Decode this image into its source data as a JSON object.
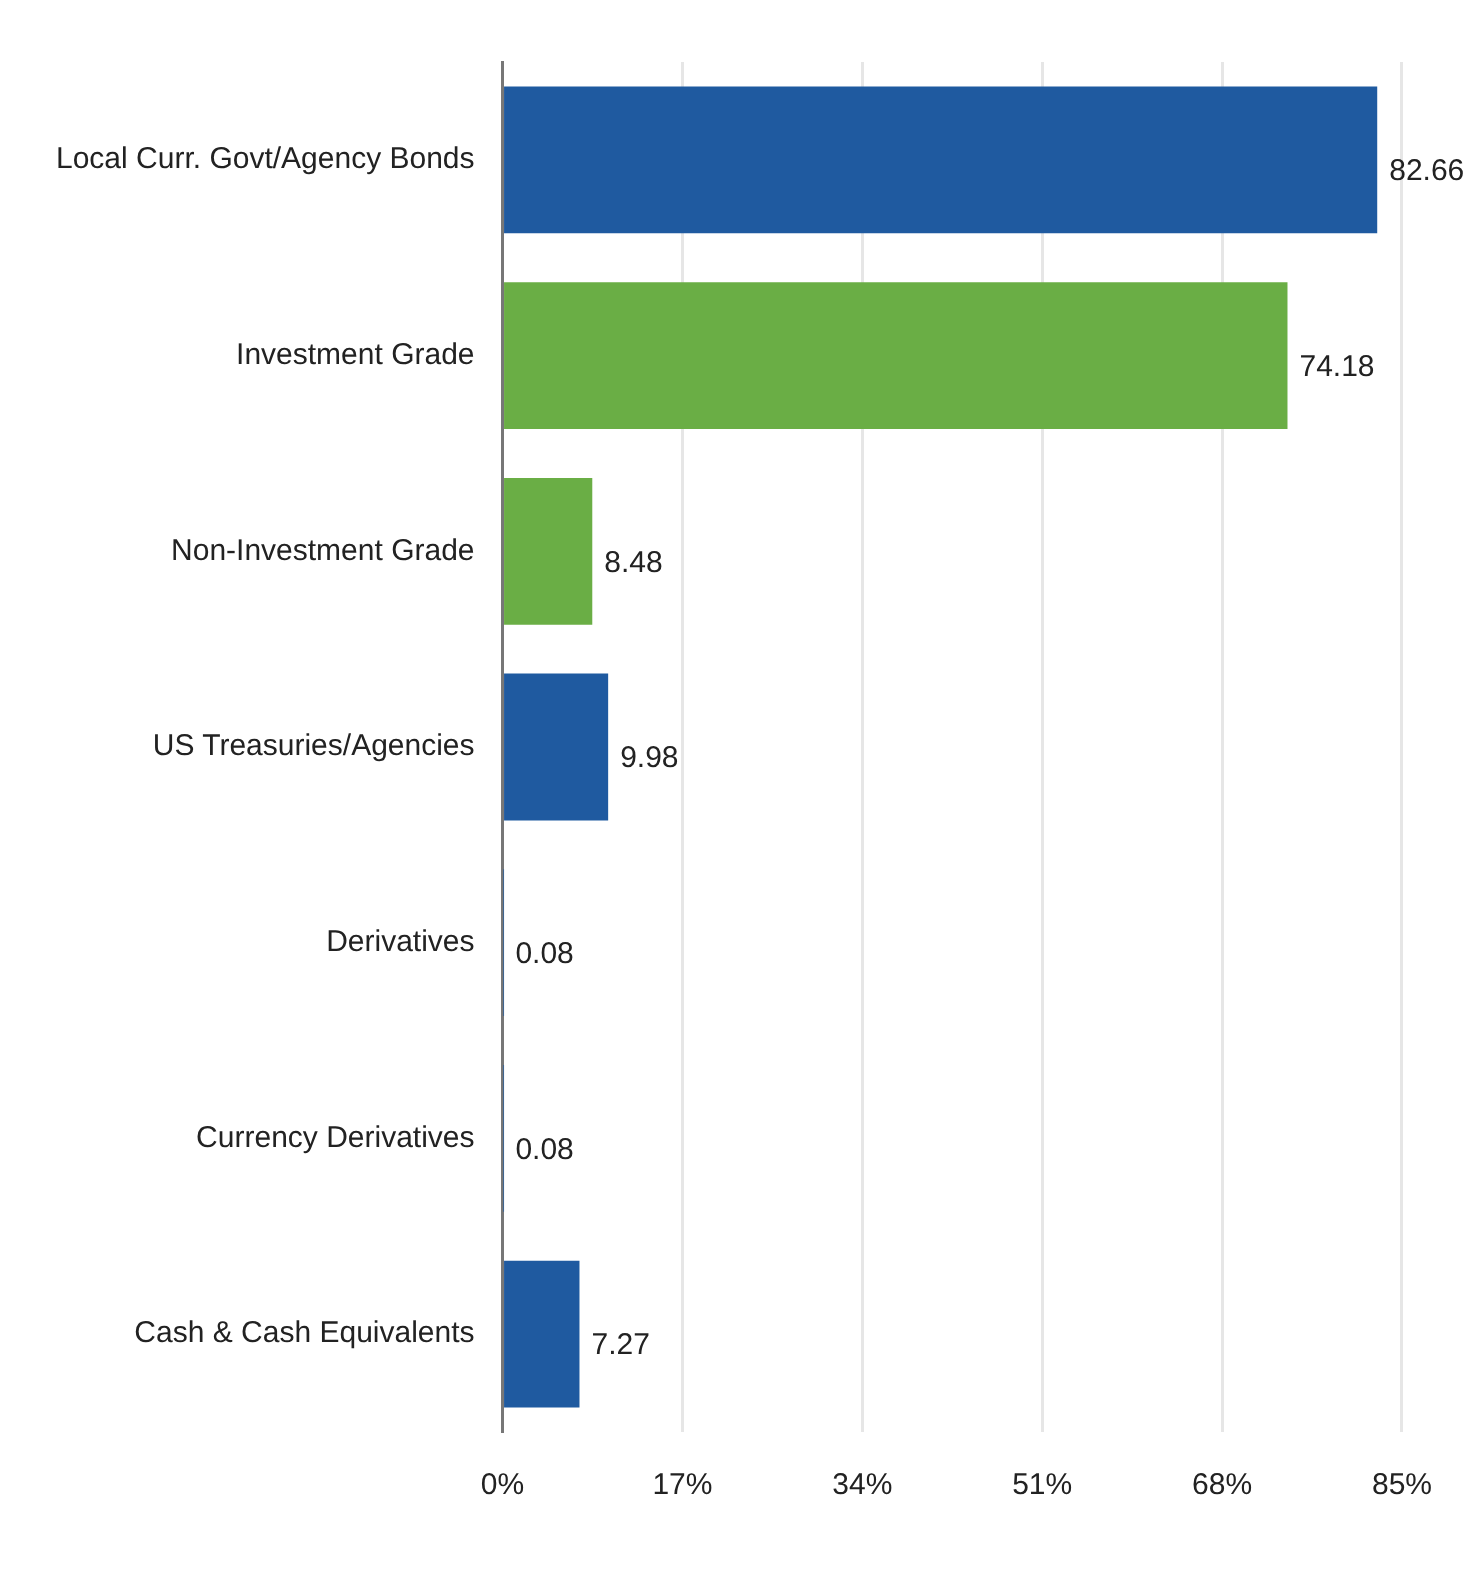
{
  "chart_data": {
    "type": "bar",
    "orientation": "horizontal",
    "categories": [
      "Local Curr. Govt/Agency Bonds",
      "Investment Grade",
      "Non-Investment Grade",
      "US Treasuries/Agencies",
      "Derivatives",
      "Currency Derivatives",
      "Cash & Cash Equivalents"
    ],
    "values": [
      82.66,
      74.18,
      8.48,
      9.98,
      0.08,
      0.08,
      7.27
    ],
    "colors": [
      "#1f5aa0",
      "#6aae45",
      "#6aae45",
      "#1f5aa0",
      "#1f5aa0",
      "#1f5aa0",
      "#1f5aa0"
    ],
    "xlim": [
      0,
      85
    ],
    "xticks": [
      {
        "value": 0,
        "label": "0%"
      },
      {
        "value": 17,
        "label": "17%"
      },
      {
        "value": 34,
        "label": "34%"
      },
      {
        "value": 51,
        "label": "51%"
      },
      {
        "value": 68,
        "label": "68%"
      },
      {
        "value": 85,
        "label": "85%"
      }
    ],
    "grid": "x",
    "data_labels": true
  }
}
